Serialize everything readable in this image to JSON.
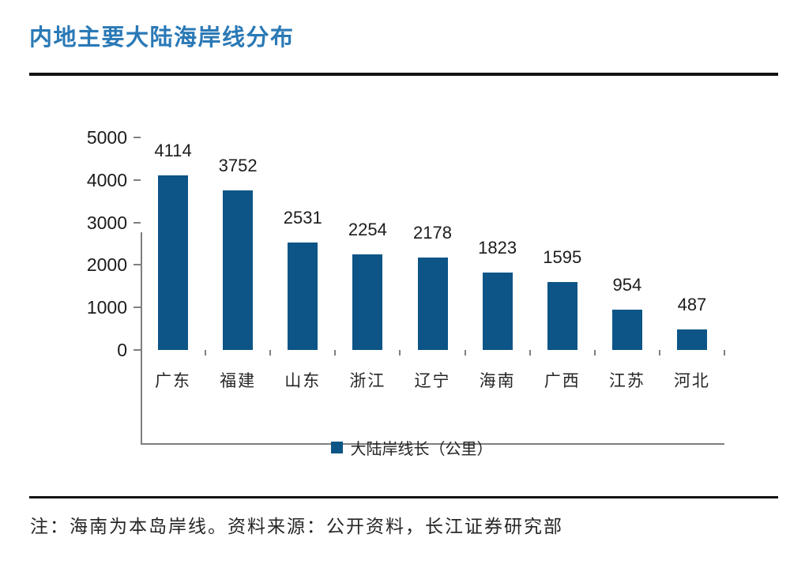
{
  "page": {
    "title": "内地主要大陆海岸线分布",
    "footnote": "注：海南为本岛岸线。资料来源：公开资料，长江证券研究部"
  },
  "colors": {
    "title_blue": "#2A79B6",
    "bar_blue": "#0D5586",
    "rule_black": "#141414",
    "axis_gray": "#7F7F7F",
    "label_dark": "#1C1C1C"
  },
  "chart_data": {
    "type": "bar",
    "title": "内地主要大陆海岸线分布",
    "categories": [
      "广东",
      "福建",
      "山东",
      "浙江",
      "辽宁",
      "海南",
      "广西",
      "江苏",
      "河北"
    ],
    "values": [
      4114,
      3752,
      2531,
      2254,
      2178,
      1823,
      1595,
      954,
      487
    ],
    "series_name": "大陆岸线长（公里）",
    "xlabel": "",
    "ylabel": "",
    "ylim": [
      0,
      5000
    ],
    "yticks": [
      "0",
      "1000",
      "2000",
      "3000",
      "4000",
      "5000"
    ],
    "grid": false,
    "legend_position": "bottom",
    "bar_color": "#0D5586"
  }
}
